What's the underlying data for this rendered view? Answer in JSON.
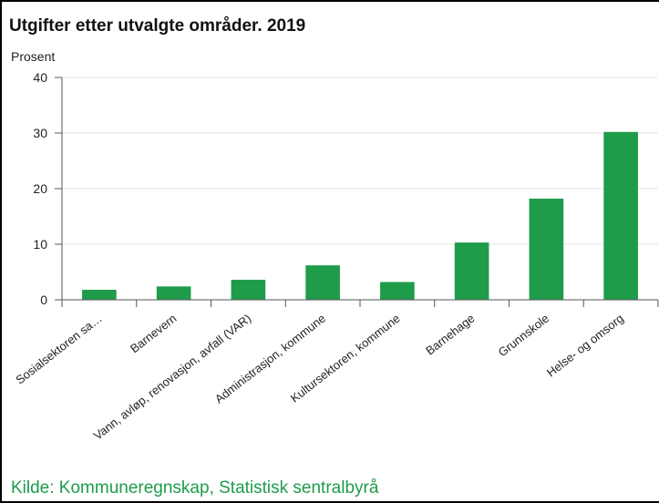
{
  "chart_data": {
    "type": "bar",
    "title": "Utgifter etter utvalgte områder. 2019",
    "ylabel": "Prosent",
    "xlabel": "",
    "categories": [
      "Sosialsektoren sa…",
      "Barnevern",
      "Vann, avløp, renovasjon, avfall (VAR)",
      "Administrasjon, kommune",
      "Kultursektoren, kommune",
      "Barnehage",
      "Grunnskole",
      "Helse- og omsorg"
    ],
    "values": [
      1.8,
      2.4,
      3.6,
      6.2,
      3.2,
      10.3,
      18.2,
      30.2
    ],
    "ylim": [
      0,
      40
    ],
    "yticks": [
      0,
      10,
      20,
      30,
      40
    ],
    "grid": true,
    "bar_color": "#1e9c4a"
  },
  "source": "Kilde: Kommuneregnskap, Statistisk sentralbyrå"
}
